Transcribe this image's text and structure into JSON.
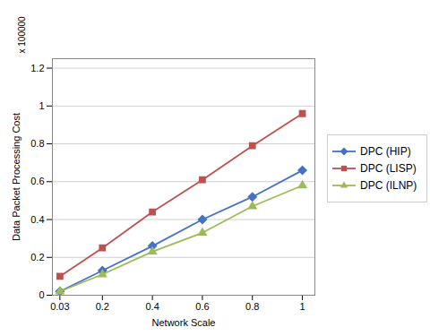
{
  "chart_data": {
    "type": "line",
    "xlabel": "Network Scale",
    "ylabel": "Data Packet Processing Cost",
    "annotations": [
      "x 100000"
    ],
    "x": [
      0.03,
      0.2,
      0.4,
      0.6,
      0.8,
      1.0
    ],
    "series": [
      {
        "name": "DPC (HIP)",
        "color": "#4472C4",
        "marker": "diamond",
        "values": [
          0.02,
          0.13,
          0.26,
          0.4,
          0.52,
          0.66
        ]
      },
      {
        "name": "DPC (LISP)",
        "color": "#C0504D",
        "marker": "square",
        "values": [
          0.1,
          0.25,
          0.44,
          0.61,
          0.79,
          0.96
        ]
      },
      {
        "name": "DPC (ILNP)",
        "color": "#9BBB59",
        "marker": "triangle",
        "values": [
          0.02,
          0.11,
          0.23,
          0.33,
          0.47,
          0.58
        ]
      }
    ],
    "xlim": [
      0.0,
      1.05
    ],
    "xticks": [
      0.03,
      0.2,
      0.4,
      0.6,
      0.8,
      1
    ],
    "ylim": [
      0,
      1.25
    ],
    "yticks": [
      0,
      0.2,
      0.4,
      0.6,
      0.8,
      1,
      1.2
    ],
    "grid": true,
    "legend": "right"
  }
}
